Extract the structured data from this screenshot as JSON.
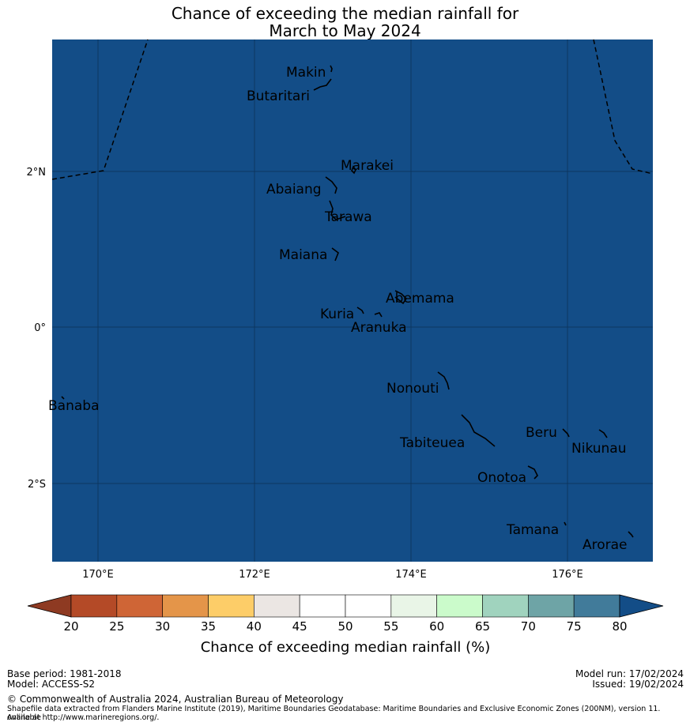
{
  "title_line1": "Chance of exceeding the median rainfall for",
  "title_line2": "March to May 2024",
  "map": {
    "ocean_color": "#134d87",
    "lon_ticks": [
      "170°E",
      "172°E",
      "174°E",
      "176°E"
    ],
    "lat_ticks": [
      "2°N",
      "0°",
      "2°S"
    ],
    "places": [
      "Makin",
      "Butaritari",
      "Marakei",
      "Abaiang",
      "Tarawa",
      "Maiana",
      "Abemama",
      "Kuria",
      "Aranuka",
      "Nonouti",
      "Banaba",
      "Beru",
      "Nikunau",
      "Tabiteuea",
      "Onotoa",
      "Tamana",
      "Arorae"
    ]
  },
  "colorbar": {
    "label": "Chance of exceeding median rainfall (%)",
    "ticks": [
      "20",
      "25",
      "30",
      "35",
      "40",
      "45",
      "50",
      "55",
      "60",
      "65",
      "70",
      "75",
      "80"
    ],
    "colors": [
      "#8e3a22",
      "#b44a27",
      "#cf6536",
      "#e49549",
      "#fdcd68",
      "#ebe6e3",
      "#ffffff",
      "#ffffff",
      "#e9f5e7",
      "#cbfbcb",
      "#a0d3be",
      "#6ea4a6",
      "#417b9a",
      "#134d87"
    ]
  },
  "footer": {
    "base_period": "Base period: 1981-2018",
    "model": "Model: ACCESS-S2",
    "model_run": "Model run: 17/02/2024",
    "issued": "Issued: 19/02/2024",
    "copyright": "© Commonwealth of Australia 2024, Australian Bureau of Meteorology",
    "shapefile_line1": "Shapefile data extracted from Flanders Marine Institute (2019), Maritime Boundaries Geodatabase: Maritime Boundaries and Exclusive Economic Zones (200NM), version 11. Available",
    "shapefile_line2": "online at http://www.marineregions.org/."
  }
}
